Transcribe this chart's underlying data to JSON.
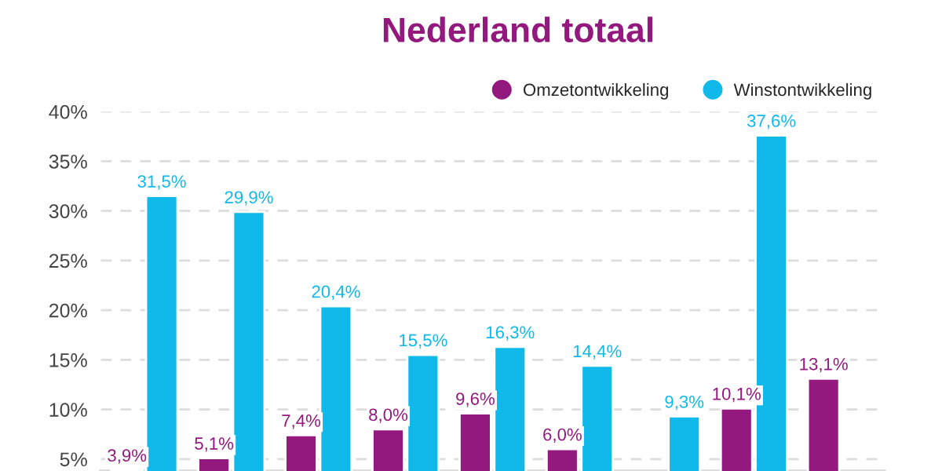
{
  "chart_data": {
    "type": "bar",
    "title": "Nederland totaal",
    "categories": [
      null,
      null,
      null,
      null,
      null,
      null,
      null,
      null,
      null
    ],
    "series": [
      {
        "name": "Omzetontwikkeling",
        "color": "#93197e",
        "values": [
          3.9,
          5.1,
          7.4,
          8.0,
          9.6,
          6.0,
          null,
          10.1,
          13.1
        ],
        "value_labels": [
          "3,9%",
          "5,1%",
          "7,4%",
          "8,0%",
          "9,6%",
          "6,0%",
          null,
          "10,1%",
          "13,1%"
        ]
      },
      {
        "name": "Winstontwikkeling",
        "color": "#10b9ea",
        "values": [
          31.5,
          29.9,
          20.4,
          15.5,
          16.3,
          14.4,
          9.3,
          37.6,
          null
        ],
        "value_labels": [
          "31,5%",
          "29,9%",
          "20,4%",
          "15,5%",
          "16,3%",
          "14,4%",
          "9,3%",
          "37,6%",
          null
        ]
      }
    ],
    "ylim": [
      3.8,
      40
    ],
    "yticks": [
      {
        "value": 5,
        "label": "5%"
      },
      {
        "value": 10,
        "label": "10%"
      },
      {
        "value": 15,
        "label": "15%"
      },
      {
        "value": 20,
        "label": "20%"
      },
      {
        "value": 25,
        "label": "25%"
      },
      {
        "value": 30,
        "label": "30%"
      },
      {
        "value": 35,
        "label": "35%"
      },
      {
        "value": 40,
        "label": "40%"
      }
    ],
    "grid": "y",
    "legend": "top right"
  }
}
